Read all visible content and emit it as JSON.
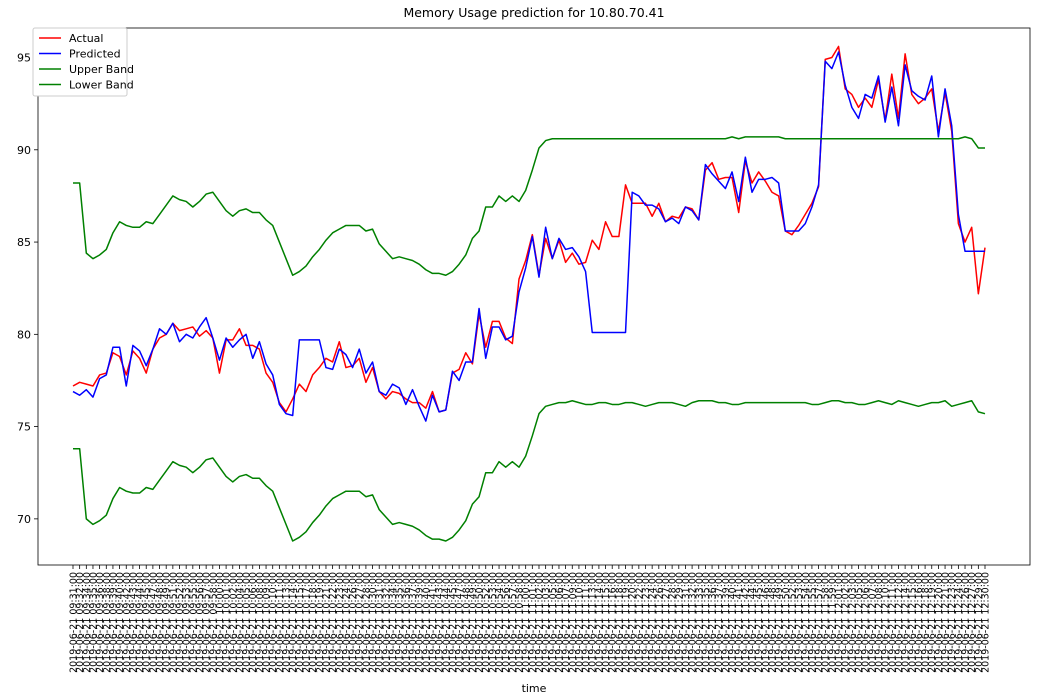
{
  "chart_data": {
    "type": "line",
    "title": "Memory Usage prediction for 10.80.70.41",
    "x_label": "time",
    "legend": "upper left",
    "categories": [
      "2019-06-21 09:31:00",
      "2019-06-21 09:32:00",
      "2019-06-21 09:34:00",
      "2019-06-21 09:35:00",
      "2019-06-21 09:36:00",
      "2019-06-21 09:38:00",
      "2019-06-21 09:39:00",
      "2019-06-21 09:40:00",
      "2019-06-21 09:42:00",
      "2019-06-21 09:43:00",
      "2019-06-21 09:44:00",
      "2019-06-21 09:45:00",
      "2019-06-21 09:47:00",
      "2019-06-21 09:48:00",
      "2019-06-21 09:49:00",
      "2019-06-21 09:51:00",
      "2019-06-21 09:52:00",
      "2019-06-21 09:53:00",
      "2019-06-21 09:55:00",
      "2019-06-21 09:56:00",
      "2019-06-21 09:57:00",
      "2019-06-21 09:58:00",
      "2019-06-21 10:00:00",
      "2019-06-21 10:01:00",
      "2019-06-21 10:02:00",
      "2019-06-21 10:04:00",
      "2019-06-21 10:05:00",
      "2019-06-21 10:06:00",
      "2019-06-21 10:08:00",
      "2019-06-21 10:09:00",
      "2019-06-21 10:10:00",
      "2019-06-21 10:11:00",
      "2019-06-21 10:13:00",
      "2019-06-21 10:14:00",
      "2019-06-21 10:15:00",
      "2019-06-21 10:17:00",
      "2019-06-21 10:18:00",
      "2019-06-21 10:19:00",
      "2019-06-21 10:21:00",
      "2019-06-21 10:22:00",
      "2019-06-21 10:23:00",
      "2019-06-21 10:24:00",
      "2019-06-21 10:26:00",
      "2019-06-21 10:27:00",
      "2019-06-21 10:28:00",
      "2019-06-21 10:30:00",
      "2019-06-21 10:31:00",
      "2019-06-21 10:32:00",
      "2019-06-21 10:34:00",
      "2019-06-21 10:35:00",
      "2019-06-21 10:36:00",
      "2019-06-21 10:37:00",
      "2019-06-21 10:39:00",
      "2019-06-21 10:40:00",
      "2019-06-21 10:41:00",
      "2019-06-21 10:43:00",
      "2019-06-21 10:44:00",
      "2019-06-21 10:45:00",
      "2019-06-21 10:47:00",
      "2019-06-21 10:48:00",
      "2019-06-21 10:49:00",
      "2019-06-21 10:50:00",
      "2019-06-21 10:52:00",
      "2019-06-21 10:53:00",
      "2019-06-21 10:54:00",
      "2019-06-21 10:56:00",
      "2019-06-21 10:57:00",
      "2019-06-21 10:58:00",
      "2019-06-21 11:00:00",
      "2019-06-21 11:01:00",
      "2019-06-21 11:02:00",
      "2019-06-21 11:03:00",
      "2019-06-21 11:05:00",
      "2019-06-21 11:06:00",
      "2019-06-21 11:07:00",
      "2019-06-21 11:09:00",
      "2019-06-21 11:10:00",
      "2019-06-21 11:11:00",
      "2019-06-21 11:13:00",
      "2019-06-21 11:14:00",
      "2019-06-21 11:15:00",
      "2019-06-21 11:16:00",
      "2019-06-21 11:18:00",
      "2019-06-21 11:19:00",
      "2019-06-21 11:20:00",
      "2019-06-21 11:22:00",
      "2019-06-21 11:23:00",
      "2019-06-21 11:24:00",
      "2019-06-21 11:26:00",
      "2019-06-21 11:27:00",
      "2019-06-21 11:28:00",
      "2019-06-21 11:29:00",
      "2019-06-21 11:31:00",
      "2019-06-21 11:32:00",
      "2019-06-21 11:33:00",
      "2019-06-21 11:35:00",
      "2019-06-21 11:36:00",
      "2019-06-21 11:37:00",
      "2019-06-21 11:39:00",
      "2019-06-21 11:40:00",
      "2019-06-21 11:41:00",
      "2019-06-21 11:42:00",
      "2019-06-21 11:44:00",
      "2019-06-21 11:45:00",
      "2019-06-21 11:46:00",
      "2019-06-21 11:48:00",
      "2019-06-21 11:49:00",
      "2019-06-21 11:50:00",
      "2019-06-21 11:52:00",
      "2019-06-21 11:53:00",
      "2019-06-21 11:54:00",
      "2019-06-21 11:55:00",
      "2019-06-21 11:57:00",
      "2019-06-21 11:58:00",
      "2019-06-21 11:59:00",
      "2019-06-21 12:01:00",
      "2019-06-21 12:02:00",
      "2019-06-21 12:03:00",
      "2019-06-21 12:05:00",
      "2019-06-21 12:06:00",
      "2019-06-21 12:07:00",
      "2019-06-21 12:08:00",
      "2019-06-21 12:10:00",
      "2019-06-21 12:11:00",
      "2019-06-21 12:12:00",
      "2019-06-21 12:14:00",
      "2019-06-21 12:15:00",
      "2019-06-21 12:16:00",
      "2019-06-21 12:18:00",
      "2019-06-21 12:19:00",
      "2019-06-21 12:20:00",
      "2019-06-21 12:21:00",
      "2019-06-21 12:23:00",
      "2019-06-21 12:24:00",
      "2019-06-21 12:26:00",
      "2019-06-21 12:27:00",
      "2019-06-21 12:29:00",
      "2019-06-21 12:30:00"
    ],
    "ylim": [
      67.5,
      96.6
    ],
    "yticks": [
      70,
      75,
      80,
      85,
      90,
      95
    ],
    "series": [
      {
        "name": "Actual",
        "color": "#ff0000",
        "values": [
          77.2,
          77.4,
          77.3,
          77.2,
          77.8,
          77.9,
          79.0,
          78.8,
          77.8,
          79.1,
          78.7,
          77.9,
          79.2,
          79.8,
          80.0,
          80.6,
          80.2,
          80.3,
          80.4,
          79.9,
          80.2,
          79.8,
          77.9,
          79.7,
          79.7,
          80.3,
          79.4,
          79.4,
          79.2,
          77.9,
          77.4,
          76.3,
          75.8,
          76.5,
          77.3,
          76.9,
          77.8,
          78.2,
          78.7,
          78.5,
          79.6,
          78.2,
          78.3,
          78.7,
          77.4,
          78.2,
          76.9,
          76.5,
          76.9,
          76.8,
          76.5,
          76.3,
          76.3,
          76.0,
          76.9,
          75.8,
          75.9,
          77.9,
          78.1,
          79.0,
          78.4,
          81.1,
          79.3,
          80.7,
          80.7,
          79.8,
          79.5,
          83.0,
          84.0,
          85.4,
          83.2,
          85.2,
          84.1,
          85.1,
          83.9,
          84.4,
          83.8,
          83.9,
          85.1,
          84.6,
          86.1,
          85.3,
          85.3,
          88.1,
          87.1,
          87.1,
          87.1,
          86.4,
          87.1,
          86.1,
          86.4,
          86.3,
          86.9,
          86.8,
          86.2,
          88.9,
          89.3,
          88.4,
          88.5,
          88.5,
          86.6,
          89.4,
          88.2,
          88.8,
          88.3,
          87.7,
          87.5,
          85.6,
          85.4,
          85.9,
          86.5,
          87.1,
          88.0,
          94.9,
          95.0,
          95.6,
          93.3,
          93.0,
          92.3,
          92.8,
          92.3,
          93.8,
          91.6,
          94.1,
          91.7,
          95.2,
          93.0,
          92.5,
          92.8,
          93.3,
          91.0,
          93.1,
          91.0,
          86.0,
          85.0,
          85.8,
          82.2,
          84.7
        ]
      },
      {
        "name": "Predicted",
        "color": "#0000ff",
        "values": [
          76.9,
          76.7,
          77.0,
          76.6,
          77.6,
          77.8,
          79.3,
          79.3,
          77.2,
          79.4,
          79.1,
          78.3,
          79.2,
          80.3,
          80.0,
          80.6,
          79.6,
          80.0,
          79.8,
          80.4,
          80.9,
          79.8,
          78.6,
          79.8,
          79.3,
          79.7,
          80.0,
          78.7,
          79.6,
          78.4,
          77.8,
          76.2,
          75.7,
          75.6,
          79.7,
          79.7,
          79.7,
          79.7,
          78.2,
          78.1,
          79.2,
          78.9,
          78.2,
          79.2,
          77.9,
          78.5,
          76.9,
          76.7,
          77.3,
          77.1,
          76.2,
          77.0,
          76.1,
          75.3,
          76.7,
          75.8,
          75.9,
          78.0,
          77.5,
          78.5,
          78.5,
          81.4,
          78.7,
          80.4,
          80.4,
          79.7,
          79.9,
          82.3,
          83.6,
          85.3,
          83.1,
          85.8,
          84.1,
          85.2,
          84.6,
          84.7,
          84.2,
          83.4,
          80.1,
          80.1,
          80.1,
          80.1,
          80.1,
          80.1,
          87.7,
          87.5,
          87.0,
          87.0,
          86.8,
          86.1,
          86.3,
          86.0,
          86.9,
          86.7,
          86.2,
          89.2,
          88.7,
          88.3,
          87.9,
          88.8,
          87.2,
          89.6,
          87.7,
          88.4,
          88.4,
          88.5,
          88.2,
          85.6,
          85.6,
          85.6,
          86.0,
          86.9,
          88.1,
          94.8,
          94.4,
          95.3,
          93.5,
          92.3,
          91.7,
          93.0,
          92.8,
          94.0,
          91.5,
          93.4,
          91.3,
          94.6,
          93.2,
          92.9,
          92.7,
          94.0,
          90.7,
          93.3,
          91.3,
          86.5,
          84.5,
          84.5,
          84.5,
          84.5
        ]
      },
      {
        "name": "Upper Band",
        "color": "#008000",
        "values": [
          88.2,
          88.2,
          84.4,
          84.1,
          84.3,
          84.6,
          85.5,
          86.1,
          85.9,
          85.8,
          85.8,
          86.1,
          86.0,
          86.5,
          87.0,
          87.5,
          87.3,
          87.2,
          86.9,
          87.2,
          87.6,
          87.7,
          87.2,
          86.7,
          86.4,
          86.7,
          86.8,
          86.6,
          86.6,
          86.2,
          85.9,
          85.0,
          84.1,
          83.2,
          83.4,
          83.7,
          84.2,
          84.6,
          85.1,
          85.5,
          85.7,
          85.9,
          85.9,
          85.9,
          85.6,
          85.7,
          84.9,
          84.5,
          84.1,
          84.2,
          84.1,
          84.0,
          83.8,
          83.5,
          83.3,
          83.3,
          83.2,
          83.4,
          83.8,
          84.3,
          85.2,
          85.6,
          86.9,
          86.9,
          87.5,
          87.2,
          87.5,
          87.2,
          87.8,
          88.9,
          90.1,
          90.5,
          90.6,
          90.6,
          90.6,
          90.6,
          90.6,
          90.6,
          90.6,
          90.6,
          90.6,
          90.6,
          90.6,
          90.6,
          90.6,
          90.6,
          90.6,
          90.6,
          90.6,
          90.6,
          90.6,
          90.6,
          90.6,
          90.6,
          90.6,
          90.6,
          90.6,
          90.6,
          90.6,
          90.7,
          90.6,
          90.7,
          90.7,
          90.7,
          90.7,
          90.7,
          90.7,
          90.6,
          90.6,
          90.6,
          90.6,
          90.6,
          90.6,
          90.6,
          90.6,
          90.6,
          90.6,
          90.6,
          90.6,
          90.6,
          90.6,
          90.6,
          90.6,
          90.6,
          90.6,
          90.6,
          90.6,
          90.6,
          90.6,
          90.6,
          90.6,
          90.6,
          90.6,
          90.6,
          90.7,
          90.6,
          90.1,
          90.1
        ]
      },
      {
        "name": "Lower Band",
        "color": "#008000",
        "values": [
          73.8,
          73.8,
          70.0,
          69.7,
          69.9,
          70.2,
          71.1,
          71.7,
          71.5,
          71.4,
          71.4,
          71.7,
          71.6,
          72.1,
          72.6,
          73.1,
          72.9,
          72.8,
          72.5,
          72.8,
          73.2,
          73.3,
          72.8,
          72.3,
          72.0,
          72.3,
          72.4,
          72.2,
          72.2,
          71.8,
          71.5,
          70.6,
          69.7,
          68.8,
          69.0,
          69.3,
          69.8,
          70.2,
          70.7,
          71.1,
          71.3,
          71.5,
          71.5,
          71.5,
          71.2,
          71.3,
          70.5,
          70.1,
          69.7,
          69.8,
          69.7,
          69.6,
          69.4,
          69.1,
          68.9,
          68.9,
          68.8,
          69.0,
          69.4,
          69.9,
          70.8,
          71.2,
          72.5,
          72.5,
          73.1,
          72.8,
          73.1,
          72.8,
          73.4,
          74.5,
          75.7,
          76.1,
          76.2,
          76.3,
          76.3,
          76.4,
          76.3,
          76.2,
          76.2,
          76.3,
          76.3,
          76.2,
          76.2,
          76.3,
          76.3,
          76.2,
          76.1,
          76.2,
          76.3,
          76.3,
          76.3,
          76.2,
          76.1,
          76.3,
          76.4,
          76.4,
          76.4,
          76.3,
          76.3,
          76.2,
          76.2,
          76.3,
          76.3,
          76.3,
          76.3,
          76.3,
          76.3,
          76.3,
          76.3,
          76.3,
          76.3,
          76.2,
          76.2,
          76.3,
          76.4,
          76.4,
          76.3,
          76.3,
          76.2,
          76.2,
          76.3,
          76.4,
          76.3,
          76.2,
          76.4,
          76.3,
          76.2,
          76.1,
          76.2,
          76.3,
          76.3,
          76.4,
          76.1,
          76.2,
          76.3,
          76.4,
          75.8,
          75.7
        ]
      }
    ]
  }
}
